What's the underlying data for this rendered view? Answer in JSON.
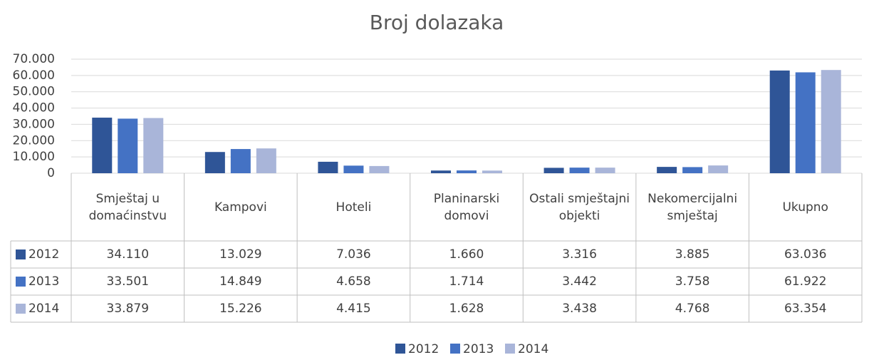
{
  "chart_data": {
    "type": "bar",
    "title": "Broj dolazaka",
    "categories": [
      "Smještaj u domaćinstvu",
      "Kampovi",
      "Hoteli",
      "Planinarski domovi",
      "Ostali smještajni objekti",
      "Nekomercijalni smještaj",
      "Ukupno"
    ],
    "series": [
      {
        "name": "2012",
        "color": "#2f5597",
        "values": [
          34110,
          13029,
          7036,
          1660,
          3316,
          3885,
          63036
        ],
        "value_labels": [
          "34.110",
          "13.029",
          "7.036",
          "1.660",
          "3.316",
          "3.885",
          "63.036"
        ]
      },
      {
        "name": "2013",
        "color": "#4472c4",
        "values": [
          33501,
          14849,
          4658,
          1714,
          3442,
          3758,
          61922
        ],
        "value_labels": [
          "33.501",
          "14.849",
          "4.658",
          "1.714",
          "3.442",
          "3.758",
          "61.922"
        ]
      },
      {
        "name": "2014",
        "color": "#a9b5d9",
        "values": [
          33879,
          15226,
          4415,
          1628,
          3438,
          4768,
          63354
        ],
        "value_labels": [
          "33.879",
          "15.226",
          "4.415",
          "1.628",
          "3.438",
          "4.768",
          "63.354"
        ]
      }
    ],
    "ylim": [
      0,
      70000
    ],
    "yticks": [
      0,
      {
        "value": 10000,
        "label": "10.000"
      },
      {
        "value": 20000,
        "label": "20.000"
      },
      {
        "value": 30000,
        "label": "30.000"
      },
      {
        "value": 40000,
        "label": "40.000"
      },
      {
        "value": 50000,
        "label": "50.000"
      },
      {
        "value": 60000,
        "label": "60.000"
      },
      {
        "value": 70000,
        "label": "70.000"
      }
    ],
    "grid": true,
    "legend": "bottom"
  }
}
